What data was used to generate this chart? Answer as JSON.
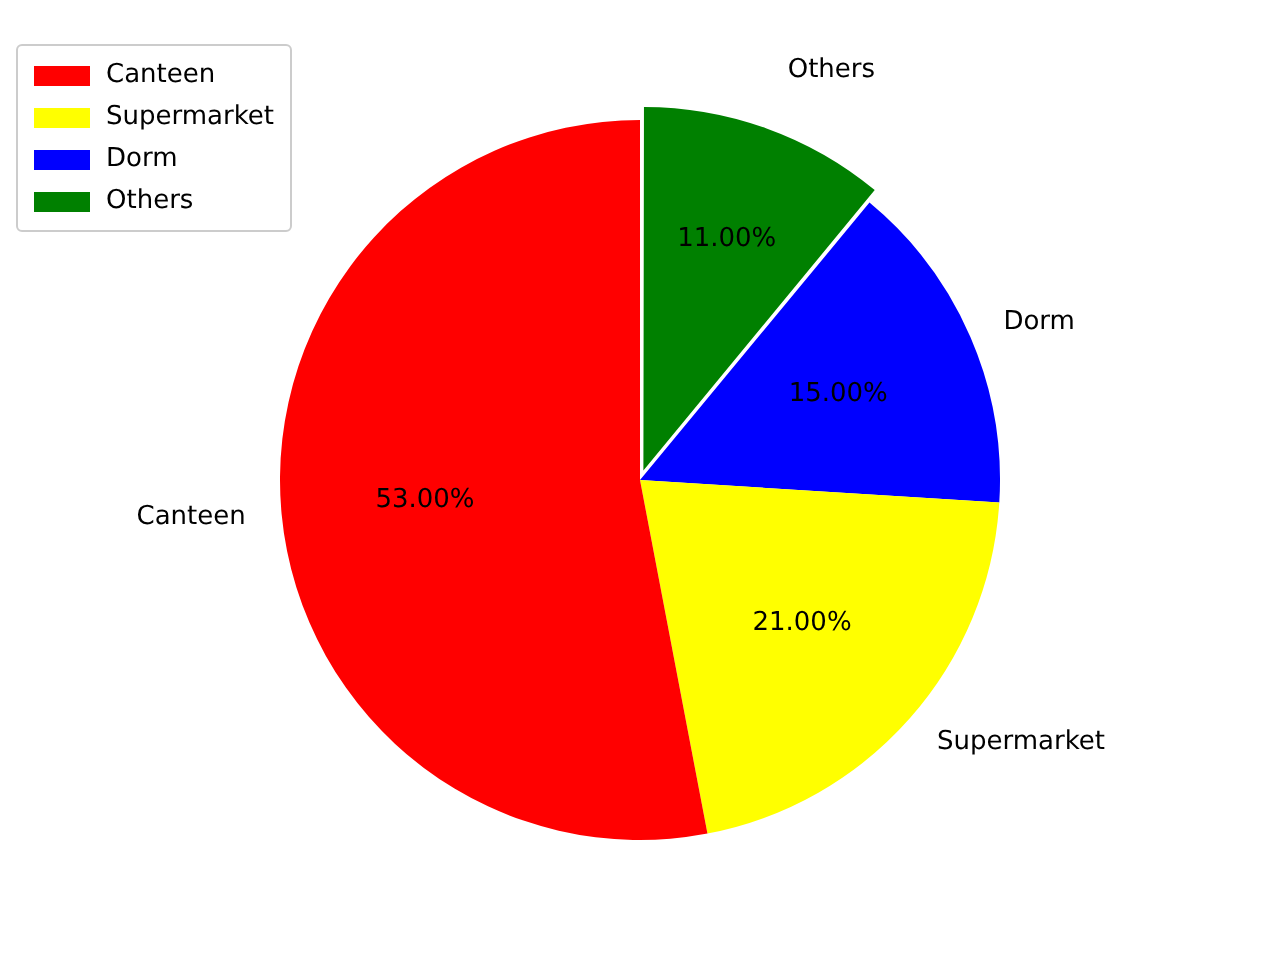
{
  "chart_data": {
    "type": "pie",
    "categories": [
      "Canteen",
      "Supermarket",
      "Dorm",
      "Others"
    ],
    "values": [
      53,
      21,
      15,
      11
    ],
    "colors": [
      "#ff0000",
      "#ffff00",
      "#0000ff",
      "#008000"
    ],
    "value_labels": [
      "53.00%",
      "21.00%",
      "15.00%",
      "11.00%"
    ],
    "legend": "top left"
  }
}
